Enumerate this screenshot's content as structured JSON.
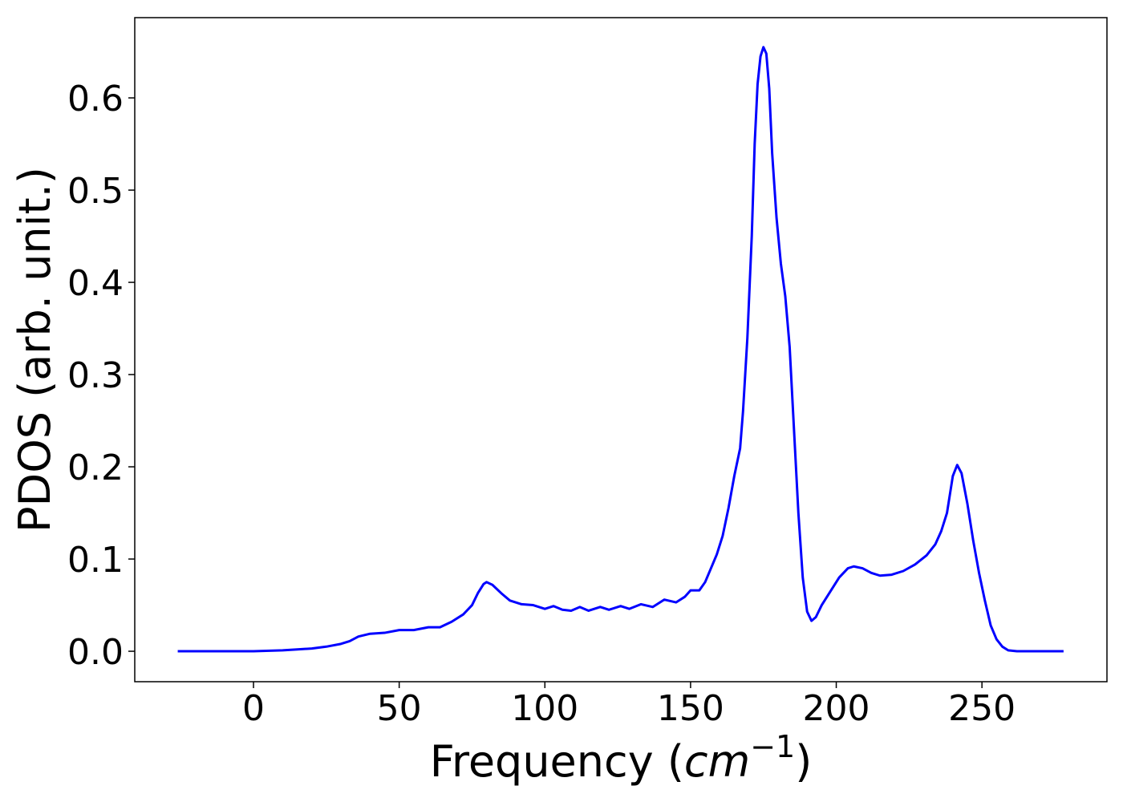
{
  "chart_data": {
    "type": "line",
    "xlabel": [
      "Frequency (",
      "cm",
      "−1",
      ")"
    ],
    "ylabel": "PDOS (arb. unit.)",
    "xlim": [
      -40.75,
      292.9
    ],
    "ylim": [
      -0.033,
      0.687
    ],
    "xticks": [
      0,
      50,
      100,
      150,
      200,
      250
    ],
    "yticks": [
      {
        "value": 0,
        "label": "0.0"
      },
      0.1,
      0.2,
      0.3,
      0.4,
      0.5,
      0.6
    ],
    "grid": false,
    "series": [
      {
        "color": "#0000ff",
        "x": [
          -26,
          0,
          10,
          15,
          20,
          25,
          30,
          33,
          36,
          40,
          45,
          50,
          55,
          60,
          64,
          68,
          72,
          75,
          77,
          79,
          80,
          82,
          85,
          88,
          92,
          96,
          100,
          103,
          106,
          109,
          112,
          115,
          119,
          122,
          126,
          129,
          133,
          137,
          141,
          145,
          148,
          150,
          153,
          155,
          157,
          159,
          161,
          163,
          165,
          167,
          168,
          169.5,
          171,
          172,
          173,
          174,
          175,
          176,
          177,
          178,
          179.5,
          181,
          182.5,
          184,
          185.5,
          187,
          188.5,
          190,
          191.5,
          193,
          195,
          198,
          201,
          204,
          206,
          209,
          212,
          215,
          219,
          223,
          227,
          231,
          234,
          236,
          238,
          240,
          241.5,
          243,
          245,
          247,
          249,
          251,
          253,
          255,
          257,
          259,
          262,
          278
        ],
        "values": [
          0,
          0,
          0.001,
          0.002,
          0.003,
          0.005,
          0.008,
          0.011,
          0.016,
          0.019,
          0.02,
          0.023,
          0.023,
          0.026,
          0.026,
          0.032,
          0.04,
          0.05,
          0.063,
          0.073,
          0.075,
          0.072,
          0.063,
          0.055,
          0.051,
          0.05,
          0.046,
          0.049,
          0.045,
          0.044,
          0.048,
          0.044,
          0.048,
          0.045,
          0.049,
          0.046,
          0.051,
          0.048,
          0.056,
          0.053,
          0.059,
          0.066,
          0.066,
          0.075,
          0.09,
          0.105,
          0.125,
          0.155,
          0.19,
          0.22,
          0.26,
          0.34,
          0.45,
          0.55,
          0.615,
          0.645,
          0.655,
          0.648,
          0.61,
          0.54,
          0.47,
          0.42,
          0.385,
          0.33,
          0.24,
          0.15,
          0.08,
          0.043,
          0.033,
          0.037,
          0.05,
          0.065,
          0.08,
          0.09,
          0.092,
          0.09,
          0.085,
          0.082,
          0.083,
          0.087,
          0.094,
          0.104,
          0.116,
          0.13,
          0.15,
          0.19,
          0.202,
          0.193,
          0.16,
          0.12,
          0.085,
          0.055,
          0.028,
          0.013,
          0.005,
          0.001,
          0,
          0
        ]
      }
    ]
  }
}
